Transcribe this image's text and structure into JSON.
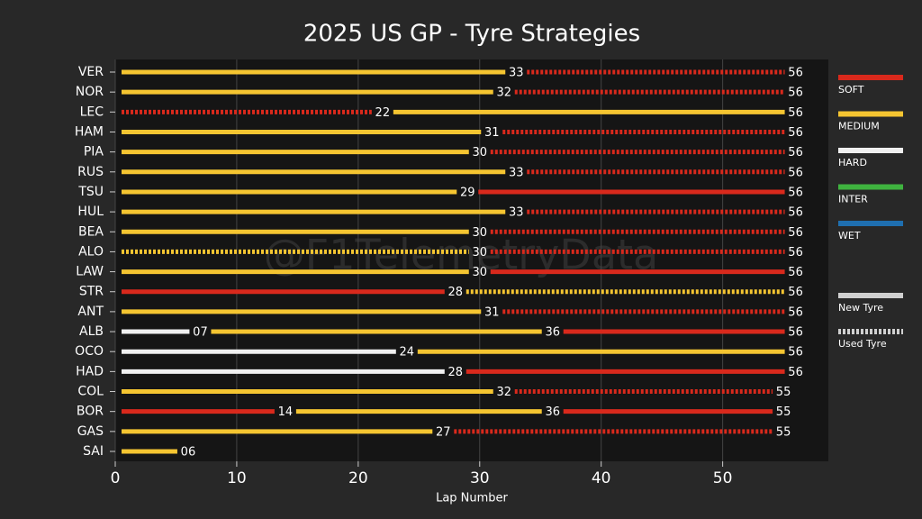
{
  "chart_data": {
    "type": "strategy",
    "title": "2025 US GP - Tyre Strategies",
    "x_label": "Lap Number",
    "watermark": "@F1TelemetryData",
    "xlim": [
      0,
      58.7
    ],
    "xticks": [
      0,
      10,
      20,
      30,
      40,
      50
    ],
    "grid": true,
    "compounds": [
      {
        "name": "SOFT",
        "color": "#d9291c"
      },
      {
        "name": "MEDIUM",
        "color": "#f5c531"
      },
      {
        "name": "HARD",
        "color": "#f0f0f0"
      },
      {
        "name": "INTER",
        "color": "#3fb33f"
      },
      {
        "name": "WET",
        "color": "#1f6fb0"
      }
    ],
    "tyre_state": {
      "new": "New Tyre",
      "used": "Used Tyre"
    },
    "rows": [
      {
        "driver": "VER",
        "values": [
          33,
          56
        ],
        "compounds": [
          "MEDIUM",
          "SOFT"
        ],
        "used": [
          false,
          true
        ]
      },
      {
        "driver": "NOR",
        "values": [
          32,
          56
        ],
        "compounds": [
          "MEDIUM",
          "SOFT"
        ],
        "used": [
          false,
          true
        ]
      },
      {
        "driver": "LEC",
        "values": [
          22,
          56
        ],
        "compounds": [
          "SOFT",
          "MEDIUM"
        ],
        "used": [
          true,
          false
        ]
      },
      {
        "driver": "HAM",
        "values": [
          31,
          56
        ],
        "compounds": [
          "MEDIUM",
          "SOFT"
        ],
        "used": [
          false,
          true
        ]
      },
      {
        "driver": "PIA",
        "values": [
          30,
          56
        ],
        "compounds": [
          "MEDIUM",
          "SOFT"
        ],
        "used": [
          false,
          true
        ]
      },
      {
        "driver": "RUS",
        "values": [
          33,
          56
        ],
        "compounds": [
          "MEDIUM",
          "SOFT"
        ],
        "used": [
          false,
          true
        ]
      },
      {
        "driver": "TSU",
        "values": [
          29,
          56
        ],
        "compounds": [
          "MEDIUM",
          "SOFT"
        ],
        "used": [
          false,
          false
        ]
      },
      {
        "driver": "HUL",
        "values": [
          33,
          56
        ],
        "compounds": [
          "MEDIUM",
          "SOFT"
        ],
        "used": [
          false,
          true
        ]
      },
      {
        "driver": "BEA",
        "values": [
          30,
          56
        ],
        "compounds": [
          "MEDIUM",
          "SOFT"
        ],
        "used": [
          false,
          true
        ]
      },
      {
        "driver": "ALO",
        "values": [
          30,
          56
        ],
        "compounds": [
          "MEDIUM",
          "SOFT"
        ],
        "used": [
          true,
          true
        ]
      },
      {
        "driver": "LAW",
        "values": [
          30,
          56
        ],
        "compounds": [
          "MEDIUM",
          "SOFT"
        ],
        "used": [
          false,
          false
        ]
      },
      {
        "driver": "STR",
        "values": [
          28,
          56
        ],
        "compounds": [
          "SOFT",
          "MEDIUM"
        ],
        "used": [
          false,
          true
        ]
      },
      {
        "driver": "ANT",
        "values": [
          31,
          56
        ],
        "compounds": [
          "MEDIUM",
          "SOFT"
        ],
        "used": [
          false,
          true
        ]
      },
      {
        "driver": "ALB",
        "values": [
          7,
          36,
          56
        ],
        "value_labels": [
          "07",
          "36",
          "56"
        ],
        "compounds": [
          "HARD",
          "MEDIUM",
          "SOFT"
        ],
        "used": [
          false,
          false,
          false
        ]
      },
      {
        "driver": "OCO",
        "values": [
          24,
          56
        ],
        "compounds": [
          "HARD",
          "MEDIUM"
        ],
        "used": [
          false,
          false
        ]
      },
      {
        "driver": "HAD",
        "values": [
          28,
          56
        ],
        "compounds": [
          "HARD",
          "SOFT"
        ],
        "used": [
          false,
          false
        ]
      },
      {
        "driver": "COL",
        "values": [
          32,
          55
        ],
        "compounds": [
          "MEDIUM",
          "SOFT"
        ],
        "used": [
          false,
          true
        ]
      },
      {
        "driver": "BOR",
        "values": [
          14,
          36,
          55
        ],
        "compounds": [
          "SOFT",
          "MEDIUM",
          "SOFT"
        ],
        "used": [
          false,
          false,
          false
        ]
      },
      {
        "driver": "GAS",
        "values": [
          27,
          55
        ],
        "compounds": [
          "MEDIUM",
          "SOFT"
        ],
        "used": [
          false,
          true
        ]
      },
      {
        "driver": "SAI",
        "values": [
          6
        ],
        "value_labels": [
          "06"
        ],
        "compounds": [
          "MEDIUM"
        ],
        "used": [
          false
        ]
      }
    ]
  }
}
